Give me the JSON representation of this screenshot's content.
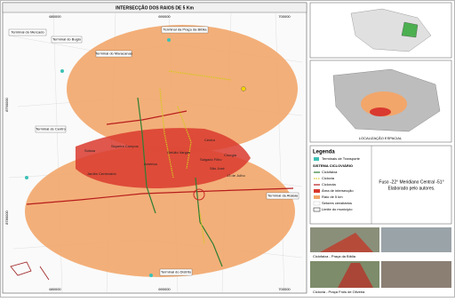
{
  "title": "INTERSECÇÃO DOS RAIOS DE 5 Km",
  "coordinates": {
    "easting": [
      "680000",
      "690000",
      "700000"
    ],
    "northing": [
      "8790000",
      "8780000"
    ]
  },
  "terminals": [
    "Terminal do Mercado",
    "Terminal do Bugio",
    "Terminal do Maracanaú",
    "Terminal da Praça da Bíblia",
    "Terminal da Atalaia",
    "Terminal do Centro",
    "Terminal do Distrito"
  ],
  "neighborhoods": [
    "Suissa",
    "Siqueira Campos",
    "Centro",
    "América",
    "Getúlio Vargas",
    "Jardim Centenário",
    "Cirurgia",
    "Salgado Filho",
    "São José",
    "13 de Julho"
  ],
  "legend": {
    "title": "Legenda",
    "terminal": "Terminais de Transporte",
    "system_title": "SISTEMA CICLOVIÁRIO",
    "items": [
      "Ciclofaixa",
      "Ciclovia",
      "Ciclorota",
      "Área de intersecção",
      "Raio de 5 km",
      "Setores censitários",
      "Limite do município"
    ]
  },
  "note": [
    "Fuso -22° Meridiano Central -51°",
    "Elaborado pelo autores."
  ],
  "locator": {
    "caption": "LOCALIZAÇÃO ESPACIAL"
  },
  "photos": [
    "Ciclofaixa - Praça da Bíblia",
    "Ciclovia - Praça Fróis de Oliveira"
  ]
}
